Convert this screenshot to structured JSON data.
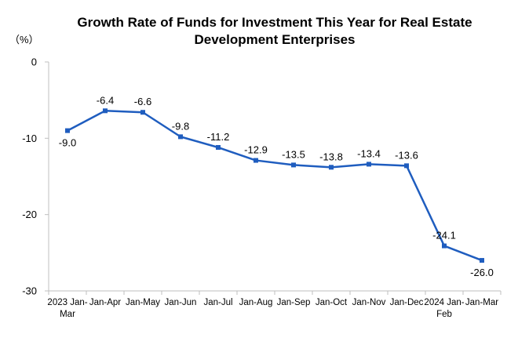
{
  "chart_data": {
    "type": "line",
    "title_line1": "Growth Rate of Funds for Investment This Year for Real Estate",
    "title_line2": "Development Enterprises",
    "unit": "（%）",
    "categories": [
      [
        "2023 Jan-",
        "Mar"
      ],
      [
        "Jan-Apr"
      ],
      [
        "Jan-May"
      ],
      [
        "Jan-Jun"
      ],
      [
        "Jan-Jul"
      ],
      [
        "Jan-Aug"
      ],
      [
        "Jan-Sep"
      ],
      [
        "Jan-Oct"
      ],
      [
        "Jan-Nov"
      ],
      [
        "Jan-Dec"
      ],
      [
        "2024 Jan-",
        "Feb"
      ],
      [
        "Jan-Mar"
      ]
    ],
    "values": [
      -9.0,
      -6.4,
      -6.6,
      -9.8,
      -11.2,
      -12.9,
      -13.5,
      -13.8,
      -13.4,
      -13.6,
      -24.1,
      -26.0
    ],
    "labels": [
      "-9.0",
      "-6.4",
      "-6.6",
      "-9.8",
      "-11.2",
      "-12.9",
      "-13.5",
      "-13.8",
      "-13.4",
      "-13.6",
      "-24.1",
      "-26.0"
    ],
    "label_position": [
      "below",
      "above",
      "above",
      "above",
      "above",
      "above",
      "above",
      "above",
      "above",
      "above",
      "above",
      "below"
    ],
    "ylim": [
      -30,
      0
    ],
    "yticks": [
      0,
      -10,
      -20,
      -30
    ],
    "ytick_labels": [
      "0",
      "-10",
      "-20",
      "-30"
    ],
    "line_color": "#1F5DBF",
    "marker_color": "#1F5DBF",
    "axis_color": "#BFBFBF",
    "grid": false,
    "legend": "none"
  }
}
